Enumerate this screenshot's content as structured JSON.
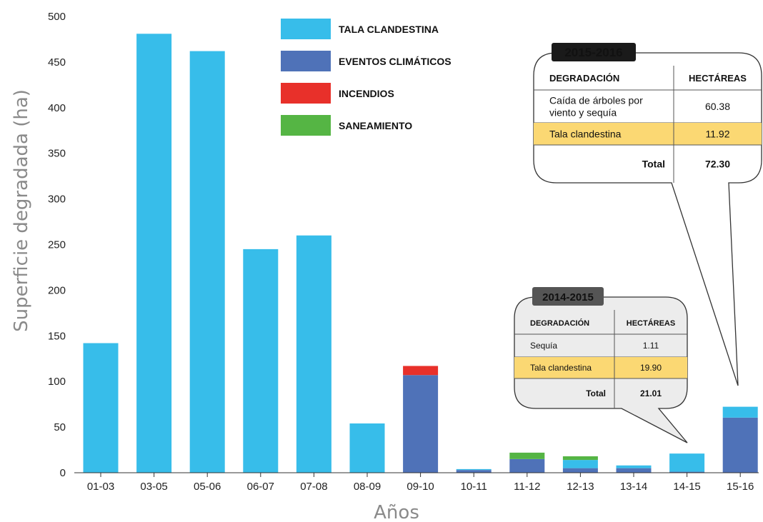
{
  "chart_data": {
    "type": "bar",
    "stacked": true,
    "xlabel": "Años",
    "ylabel": "Superficie degradada (ha)",
    "ylim": [
      0,
      500
    ],
    "yticks": [
      0,
      50,
      100,
      150,
      200,
      250,
      300,
      350,
      400,
      450,
      500
    ],
    "grid": false,
    "legend_position": "top-center",
    "categories": [
      "01-03",
      "03-05",
      "05-06",
      "06-07",
      "07-08",
      "08-09",
      "09-10",
      "10-11",
      "11-12",
      "12-13",
      "13-14",
      "14-15",
      "15-16"
    ],
    "series": [
      {
        "name": "EVENTOS CLIMÁTICOS",
        "color": "#4f72b8",
        "values": [
          0,
          0,
          0,
          0,
          0,
          0,
          107,
          3,
          15,
          5,
          5,
          1.11,
          60.38
        ]
      },
      {
        "name": "TALA CLANDESTINA",
        "color": "#37bdea",
        "values": [
          142,
          481,
          462,
          245,
          260,
          54,
          0,
          1,
          0,
          9,
          3,
          19.9,
          11.92
        ]
      },
      {
        "name": "INCENDIOS",
        "color": "#e8302a",
        "values": [
          0,
          0,
          0,
          0,
          0,
          0,
          10,
          0,
          0,
          0,
          0,
          0,
          0
        ]
      },
      {
        "name": "SANEAMIENTO",
        "color": "#55b544",
        "values": [
          0,
          0,
          0,
          0,
          0,
          0,
          0,
          0,
          7,
          4,
          0,
          0,
          0
        ]
      }
    ],
    "legend_order": [
      "TALA CLANDESTINA",
      "EVENTOS CLIMÁTICOS",
      "INCENDIOS",
      "SANEAMIENTO"
    ],
    "annotations": [
      {
        "title": "2015-2016",
        "target_category": "15-16",
        "headers": [
          "DEGRADACIÓN",
          "HECTÁREAS"
        ],
        "rows": [
          {
            "label": "Caída de árboles por viento y sequía",
            "value": "60.38",
            "highlight": false
          },
          {
            "label": "Tala clandestina",
            "value": "11.92",
            "highlight": true
          }
        ],
        "total_label": "Total",
        "total_value": "72.30"
      },
      {
        "title": "2014-2015",
        "target_category": "14-15",
        "headers": [
          "DEGRADACIÓN",
          "HECTÁREAS"
        ],
        "rows": [
          {
            "label": "Sequía",
            "value": "1.11",
            "highlight": false
          },
          {
            "label": "Tala clandestina",
            "value": "19.90",
            "highlight": true
          }
        ],
        "total_label": "Total",
        "total_value": "21.01"
      }
    ],
    "highlight_color": "#fbd873"
  }
}
